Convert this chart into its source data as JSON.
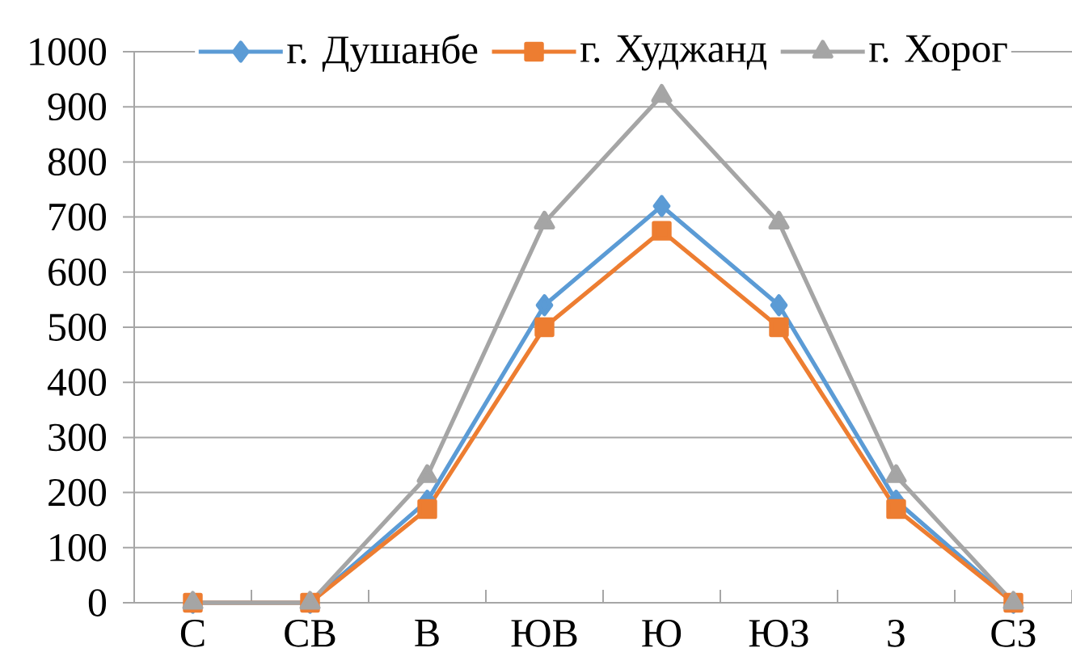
{
  "chart_data": {
    "type": "line",
    "categories": [
      "С",
      "СВ",
      "В",
      "ЮВ",
      "Ю",
      "ЮЗ",
      "З",
      "СЗ"
    ],
    "series": [
      {
        "name": "г. Душанбе",
        "color": "#5b9bd5",
        "marker": "diamond",
        "values": [
          0,
          0,
          185,
          540,
          720,
          540,
          185,
          0
        ]
      },
      {
        "name": "г. Худжанд",
        "color": "#ed7d31",
        "marker": "square",
        "values": [
          0,
          0,
          170,
          500,
          675,
          500,
          170,
          0
        ]
      },
      {
        "name": "г. Хорог",
        "color": "#a5a5a5",
        "marker": "triangle",
        "values": [
          0,
          0,
          230,
          690,
          920,
          690,
          230,
          0
        ]
      }
    ],
    "ylim": [
      0,
      1000
    ],
    "yticks": [
      0,
      100,
      200,
      300,
      400,
      500,
      600,
      700,
      800,
      900,
      1000
    ],
    "grid": "y",
    "legend": "top",
    "line_style": "solid"
  }
}
